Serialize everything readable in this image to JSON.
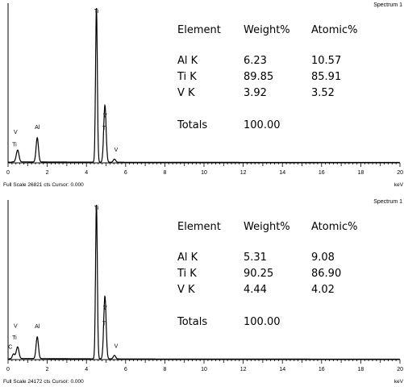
{
  "chart_data": [
    {
      "type": "line",
      "spectrum_label": "Spectrum 1",
      "footer": "Full Scale 26821 cts Cursor: 0.000",
      "xunit": "keV",
      "xlim": [
        0,
        20
      ],
      "ylim": [
        0,
        26821
      ],
      "xticks": [
        "0",
        "2",
        "4",
        "6",
        "8",
        "10",
        "12",
        "14",
        "16",
        "18",
        "20"
      ],
      "peaks": [
        {
          "label": "Ti",
          "x": 0.45,
          "y": 900
        },
        {
          "label": "V",
          "x": 0.51,
          "y": 1400
        },
        {
          "label": "Al",
          "x": 1.49,
          "y": 4200
        },
        {
          "label": "Ti",
          "x": 4.51,
          "y": 26821
        },
        {
          "label": "Ti",
          "x": 4.93,
          "y": 3800
        },
        {
          "label": "V",
          "x": 4.95,
          "y": 6200
        },
        {
          "label": "V",
          "x": 5.43,
          "y": 550
        }
      ],
      "table": {
        "headers": [
          "Element",
          "Weight%",
          "Atomic%"
        ],
        "rows": [
          [
            "Al K",
            "6.23",
            "10.57"
          ],
          [
            "Ti K",
            "89.85",
            "85.91"
          ],
          [
            "V K",
            "3.92",
            "3.52"
          ]
        ],
        "totals": [
          "Totals",
          "100.00"
        ]
      }
    },
    {
      "type": "line",
      "spectrum_label": "Spectrum 1",
      "footer": "Full Scale 24172 cts Cursor: 0.000",
      "xunit": "keV",
      "xlim": [
        0,
        20
      ],
      "ylim": [
        0,
        24172
      ],
      "xticks": [
        "0",
        "2",
        "4",
        "6",
        "8",
        "10",
        "12",
        "14",
        "16",
        "18",
        "20"
      ],
      "peaks": [
        {
          "label": "C",
          "x": 0.28,
          "y": 700
        },
        {
          "label": "Ti",
          "x": 0.45,
          "y": 850
        },
        {
          "label": "V",
          "x": 0.51,
          "y": 1200
        },
        {
          "label": "Al",
          "x": 1.49,
          "y": 3400
        },
        {
          "label": "Ti",
          "x": 4.51,
          "y": 24172
        },
        {
          "label": "Ti",
          "x": 4.93,
          "y": 3600
        },
        {
          "label": "V",
          "x": 4.95,
          "y": 6300
        },
        {
          "label": "V",
          "x": 5.43,
          "y": 550
        }
      ],
      "table": {
        "headers": [
          "Element",
          "Weight%",
          "Atomic%"
        ],
        "rows": [
          [
            "Al K",
            "5.31",
            "9.08"
          ],
          [
            "Ti K",
            "90.25",
            "86.90"
          ],
          [
            "V K",
            "4.44",
            "4.02"
          ]
        ],
        "totals": [
          "Totals",
          "100.00"
        ]
      }
    }
  ]
}
